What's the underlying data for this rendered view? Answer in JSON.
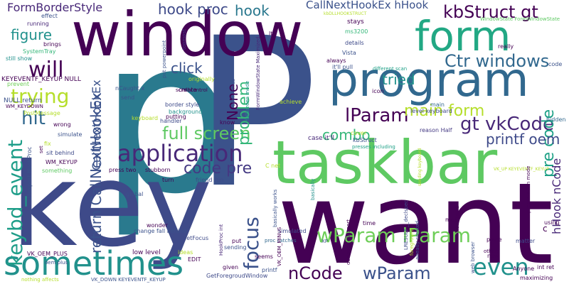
{
  "words": [
    {
      "text": "p",
      "color": "#2a7a8e",
      "weight": 1.0
    },
    {
      "text": "P",
      "color": "#3b528b",
      "weight": 0.95
    },
    {
      "text": "key",
      "color": "#3e4a89",
      "weight": 0.9
    },
    {
      "text": "want",
      "color": "#440154",
      "weight": 0.88
    },
    {
      "text": "window",
      "color": "#440154",
      "weight": 0.85
    },
    {
      "text": "taskbar",
      "color": "#5ec962",
      "weight": 0.8
    },
    {
      "text": "program",
      "color": "#31688e",
      "weight": 0.7
    },
    {
      "text": "form",
      "color": "#22a884",
      "weight": 0.62
    },
    {
      "text": "sometimes",
      "color": "#21918c",
      "weight": 0.55
    },
    {
      "text": "application",
      "color": "#482878",
      "weight": 0.45
    },
    {
      "text": "keybd_event",
      "color": "#1f9e89",
      "weight": 0.42
    },
    {
      "text": "wParam lParam",
      "color": "#6ece58",
      "weight": 0.42
    },
    {
      "text": "trying",
      "color": "#b5de2b",
      "weight": 0.4
    },
    {
      "text": "nCode",
      "color": "#440154",
      "weight": 0.38
    },
    {
      "text": "wParam",
      "color": "#3b528b",
      "weight": 0.38
    },
    {
      "text": "even",
      "color": "#21918c",
      "weight": 0.38
    },
    {
      "text": "will",
      "color": "#440154",
      "weight": 0.36
    },
    {
      "text": "focus",
      "color": "#3b528b",
      "weight": 0.36
    },
    {
      "text": "hit",
      "color": "#31688e",
      "weight": 0.34
    },
    {
      "text": "lParam",
      "color": "#440154",
      "weight": 0.34
    },
    {
      "text": "return CallNextHookEx",
      "color": "#3b528b",
      "weight": 0.3
    },
    {
      "text": "gt vkCode",
      "color": "#482878",
      "weight": 0.3
    },
    {
      "text": "kbStruct gt",
      "color": "#440154",
      "weight": 0.3
    },
    {
      "text": "Ctr windows",
      "color": "#31688e",
      "weight": 0.3
    },
    {
      "text": "full screen",
      "color": "#5ec962",
      "weight": 0.3
    },
    {
      "text": "problem",
      "color": "#35b779",
      "weight": 0.3
    },
    {
      "text": "pre code",
      "color": "#1fa187",
      "weight": 0.28
    },
    {
      "text": "code pre",
      "color": "#443983",
      "weight": 0.28
    },
    {
      "text": "main form",
      "color": "#b5de2b",
      "weight": 0.28
    },
    {
      "text": "combo",
      "color": "#35b779",
      "weight": 0.28
    },
    {
      "text": "printf oem",
      "color": "#3e4a89",
      "weight": 0.26
    },
    {
      "text": "hook proc",
      "color": "#3e4a89",
      "weight": 0.24
    },
    {
      "text": "hook",
      "color": "#2a788e",
      "weight": 0.24
    },
    {
      "text": "tried",
      "color": "#21918c",
      "weight": 0.24
    },
    {
      "text": "click",
      "color": "#3b528b",
      "weight": 0.24
    },
    {
      "text": "figure",
      "color": "#21918c",
      "weight": 0.24
    },
    {
      "text": "None",
      "color": "#440154",
      "weight": 0.24
    },
    {
      "text": "hHook nCode",
      "color": "#482878",
      "weight": 0.24
    },
    {
      "text": "FormBorderStyle",
      "color": "#482878",
      "weight": 0.2
    },
    {
      "text": "CallNextHookEx hHook",
      "color": "#3b528b",
      "weight": 0.2
    },
    {
      "text": "CallNextHookEx",
      "color": "#3b528b",
      "weight": 0.2
    },
    {
      "text": "KEYEVENTF_KEYUP NULL",
      "color": "#440154",
      "weight": 0.14
    },
    {
      "text": "FormWindowState Maximized",
      "color": "#482878",
      "weight": 0.08
    },
    {
      "text": "WindowState FormWindowState",
      "color": "#5ec962",
      "weight": 0.08
    },
    {
      "text": "kbDLLHOOKSTRUCT",
      "color": "#b5de2b",
      "weight": 0.07
    },
    {
      "text": "effect",
      "color": "#3b528b",
      "weight": 0.08
    },
    {
      "text": "running",
      "color": "#482878",
      "weight": 0.08
    },
    {
      "text": "brings",
      "color": "#440154",
      "weight": 0.08
    },
    {
      "text": "SystemTray",
      "color": "#35b779",
      "weight": 0.08
    },
    {
      "text": "still show",
      "color": "#21918c",
      "weight": 0.08
    },
    {
      "text": "prevent",
      "color": "#6ece58",
      "weight": 0.08
    },
    {
      "text": "stays",
      "color": "#440154",
      "weight": 0.09
    },
    {
      "text": "ms3200",
      "color": "#35b779",
      "weight": 0.08
    },
    {
      "text": "details",
      "color": "#3e4a89",
      "weight": 0.08
    },
    {
      "text": "Vista",
      "color": "#3b528b",
      "weight": 0.08
    },
    {
      "text": "always",
      "color": "#440154",
      "weight": 0.08
    },
    {
      "text": "it'll pull",
      "color": "#3b528b",
      "weight": 0.08
    },
    {
      "text": "different scan",
      "color": "#1fa187",
      "weight": 0.07
    },
    {
      "text": "really",
      "color": "#440154",
      "weight": 0.08
    },
    {
      "text": "code",
      "color": "#3b528b",
      "weight": 0.08
    },
    {
      "text": "icon",
      "color": "#440154",
      "weight": 0.08
    },
    {
      "text": "level keyboard",
      "color": "#3e4a89",
      "weight": 0.08
    },
    {
      "text": "main",
      "color": "#31688e",
      "weight": 0.08
    },
    {
      "text": "reason Half",
      "color": "#443983",
      "weight": 0.08
    },
    {
      "text": "case it'll",
      "color": "#482878",
      "weight": 0.09
    },
    {
      "text": "cover",
      "color": "#b5de2b",
      "weight": 0.08
    },
    {
      "text": "kbStruct",
      "color": "#3b528b",
      "weight": 0.08
    },
    {
      "text": "presses including",
      "color": "#1fa187",
      "weight": 0.07
    },
    {
      "text": "hidden",
      "color": "#31688e",
      "weight": 0.08
    },
    {
      "text": "put powerpoint",
      "color": "#3b528b",
      "weight": 0.08
    },
    {
      "text": "topmost",
      "color": "#443983",
      "weight": 0.08
    },
    {
      "text": "scroll control",
      "color": "#440154",
      "weight": 0.07
    },
    {
      "text": "oem minus",
      "color": "#3e4a89",
      "weight": 0.07
    },
    {
      "text": "originally",
      "color": "#b5de2b",
      "weight": 0.08
    },
    {
      "text": "lt",
      "color": "#440154",
      "weight": 0.08
    },
    {
      "text": "nCaught x",
      "color": "#3b528b",
      "weight": 0.08
    },
    {
      "text": "create",
      "color": "#440154",
      "weight": 0.08
    },
    {
      "text": "send",
      "color": "#3b528b",
      "weight": 0.08
    },
    {
      "text": "border style",
      "color": "#3e4a89",
      "weight": 0.08
    },
    {
      "text": "background",
      "color": "#21918c",
      "weight": 0.08
    },
    {
      "text": "achieve",
      "color": "#b5de2b",
      "weight": 0.08
    },
    {
      "text": "fullscreen mode",
      "color": "#21918c",
      "weight": 0.07
    },
    {
      "text": "handler",
      "color": "#3e4a89",
      "weight": 0.08
    },
    {
      "text": "putting",
      "color": "#440154",
      "weight": 0.08
    },
    {
      "text": "know",
      "color": "#440154",
      "weight": 0.08
    },
    {
      "text": "keyboard",
      "color": "#b5de2b",
      "weight": 0.08
    },
    {
      "text": "NULL return",
      "color": "#3b528b",
      "weight": 0.09
    },
    {
      "text": "PostMessage",
      "color": "#b5de2b",
      "weight": 0.08
    },
    {
      "text": "WM_KEYDOWN",
      "color": "#440154",
      "weight": 0.07
    },
    {
      "text": "wrong",
      "color": "#440154",
      "weight": 0.08
    },
    {
      "text": "simulate",
      "color": "#3b528b",
      "weight": 0.08
    },
    {
      "text": "fix",
      "color": "#b5de2b",
      "weight": 0.08
    },
    {
      "text": "set",
      "color": "#440154",
      "weight": 0.07
    },
    {
      "text": "sit behind",
      "color": "#3e4a89",
      "weight": 0.08
    },
    {
      "text": "WM_KEYUP",
      "color": "#440154",
      "weight": 0.08
    },
    {
      "text": "something",
      "color": "#5ec962",
      "weight": 0.08
    },
    {
      "text": "dllexport HookProc",
      "color": "#3b528b",
      "weight": 0.08
    },
    {
      "text": "press two",
      "color": "#440154",
      "weight": 0.08
    },
    {
      "text": "stubborn",
      "color": "#440154",
      "weight": 0.08
    },
    {
      "text": "turn",
      "color": "#440154",
      "weight": 0.08
    },
    {
      "text": "friend run",
      "color": "#3e4a89",
      "weight": 0.08
    },
    {
      "text": "global",
      "color": "#3b528b",
      "weight": 0.08
    },
    {
      "text": "C net",
      "color": "#b5de2b",
      "weight": 0.08
    },
    {
      "text": "simulated",
      "color": "#3e4a89",
      "weight": 0.08
    },
    {
      "text": "basically",
      "color": "#21918c",
      "weight": 0.07
    },
    {
      "text": "basically works",
      "color": "#3b528b",
      "weight": 0.07
    },
    {
      "text": "proc catches",
      "color": "#31688e",
      "weight": 0.07
    },
    {
      "text": "VK_UP KEYEVENTF_KEYUP",
      "color": "#b5de2b",
      "weight": 0.06
    },
    {
      "text": "sending keyboard",
      "color": "#b5de2b",
      "weight": 0.06
    },
    {
      "text": "wonder",
      "color": "#440154",
      "weight": 0.08
    },
    {
      "text": "change fall behind",
      "color": "#3b528b",
      "weight": 0.08
    },
    {
      "text": "GetFocus",
      "color": "#3e4a89",
      "weight": 0.08
    },
    {
      "text": "HookProc int",
      "color": "#482878",
      "weight": 0.07
    },
    {
      "text": "put",
      "color": "#440154",
      "weight": 0.08
    },
    {
      "text": "sending",
      "color": "#3b528b",
      "weight": 0.08
    },
    {
      "text": "ideas",
      "color": "#b5de2b",
      "weight": 0.08
    },
    {
      "text": "low level",
      "color": "#440154",
      "weight": 0.09
    },
    {
      "text": "VK_OEM_PLUS",
      "color": "#440154",
      "weight": 0.08
    },
    {
      "text": "oem plus",
      "color": "#3b528b",
      "weight": 0.07
    },
    {
      "text": "EDIT",
      "color": "#440154",
      "weight": 0.08
    },
    {
      "text": "seems",
      "color": "#440154",
      "weight": 0.08
    },
    {
      "text": "given",
      "color": "#440154",
      "weight": 0.08
    },
    {
      "text": "printf",
      "color": "#3b528b",
      "weight": 0.08
    },
    {
      "text": "nothing affects",
      "color": "#b5de2b",
      "weight": 0.07
    },
    {
      "text": "VK_DOWN KEYEVENTF_KEYUP",
      "color": "#3b528b",
      "weight": 0.07
    },
    {
      "text": "GetForegroudWindow",
      "color": "#3e4a89",
      "weight": 0.08
    },
    {
      "text": "VK_OEM_MINUS",
      "color": "#440154",
      "weight": 0.07
    },
    {
      "text": "time",
      "color": "#440154",
      "weight": 0.08
    },
    {
      "text": "XP",
      "color": "#3b528b",
      "weight": 0.07
    },
    {
      "text": "declspec dllexport",
      "color": "#440154",
      "weight": 0.07
    },
    {
      "text": "LRESULT __declspec",
      "color": "#3e4a89",
      "weight": 0.07
    },
    {
      "text": "foreground",
      "color": "#b5de2b",
      "weight": 0.07
    },
    {
      "text": "already created",
      "color": "#3b528b",
      "weight": 0.07
    },
    {
      "text": "presentation mode",
      "color": "#440154",
      "weight": 0.07
    },
    {
      "text": "may",
      "color": "#440154",
      "weight": 0.08
    },
    {
      "text": "now send",
      "color": "#440154",
      "weight": 0.08
    },
    {
      "text": "place",
      "color": "#440154",
      "weight": 0.08
    },
    {
      "text": "web browser",
      "color": "#3b528b",
      "weight": 0.07
    },
    {
      "text": "others",
      "color": "#440154",
      "weight": 0.07
    },
    {
      "text": "new",
      "color": "#440154",
      "weight": 0.08
    },
    {
      "text": "matter",
      "color": "#3e4a89",
      "weight": 0.08
    },
    {
      "text": "using",
      "color": "#440154",
      "weight": 0.08
    },
    {
      "text": "Anyone",
      "color": "#440154",
      "weight": 0.08
    },
    {
      "text": "int ret",
      "color": "#440154",
      "weight": 0.08
    },
    {
      "text": "maximizing",
      "color": "#440154",
      "weight": 0.08
    },
    {
      "text": "c",
      "color": "#440154",
      "weight": 0.1
    }
  ]
}
